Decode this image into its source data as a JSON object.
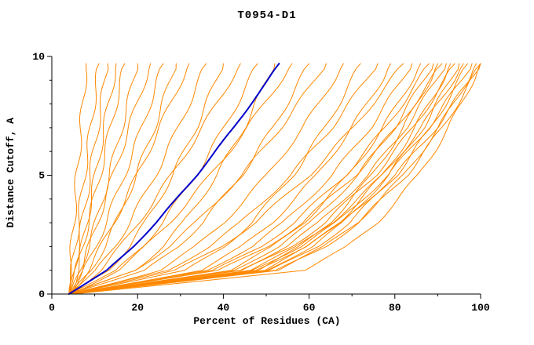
{
  "chart_data": {
    "type": "line",
    "title": "T0954-D1",
    "xlabel": "Percent of Residues (CA)",
    "ylabel": "Distance Cutoff, A",
    "xlim": [
      0,
      100
    ],
    "ylim": [
      0,
      10
    ],
    "x_ticks": [
      0,
      20,
      40,
      60,
      80,
      100
    ],
    "y_ticks": [
      0,
      5,
      10
    ],
    "x_minor_step": 10,
    "y_minor_step": 1,
    "grid": false,
    "legend": "none",
    "colors": {
      "model": "#ff8800",
      "highlight": "#0000cc"
    },
    "y_levels": [
      0,
      1,
      2,
      3,
      5,
      7,
      9,
      9.7
    ],
    "series": [
      {
        "color": "#ff8800",
        "x": [
          4,
          4.3,
          4.7,
          5.1,
          5.9,
          6.8,
          7.7,
          8
        ]
      },
      {
        "color": "#ff8800",
        "x": [
          4,
          4.7,
          5.4,
          6.2,
          7.6,
          9.1,
          10.5,
          11
        ]
      },
      {
        "color": "#ff8800",
        "x": [
          4,
          5.2,
          6.2,
          7.1,
          8.9,
          10.7,
          12.4,
          13
        ]
      },
      {
        "color": "#ff8800",
        "x": [
          5,
          6,
          7.1,
          8.1,
          10.2,
          12.2,
          14.3,
          15
        ]
      },
      {
        "color": "#ff8800",
        "x": [
          4,
          5.7,
          7.1,
          8.5,
          11.2,
          13.7,
          16.2,
          17
        ]
      },
      {
        "color": "#ff8800",
        "x": [
          4,
          6.6,
          8.5,
          10.3,
          13.4,
          16.3,
          19.1,
          20
        ]
      },
      {
        "color": "#ff8800",
        "x": [
          5,
          6.9,
          8.7,
          10.6,
          14.3,
          18,
          21.7,
          23
        ]
      },
      {
        "color": "#ff8800",
        "x": [
          4,
          7.6,
          10.2,
          12.6,
          16.9,
          21,
          24.7,
          26
        ]
      },
      {
        "color": "#ff8800",
        "x": [
          4,
          9.1,
          12.3,
          15,
          19.7,
          23.9,
          27.7,
          29
        ]
      },
      {
        "color": "#ff8800",
        "x": [
          5,
          8.5,
          11.5,
          14.4,
          19.9,
          25.1,
          30.2,
          32
        ]
      },
      {
        "color": "#ff8800",
        "x": [
          4,
          10.5,
          14.6,
          18.1,
          24.1,
          29.5,
          34.4,
          36
        ]
      },
      {
        "color": "#ff8800",
        "x": [
          4,
          13.2,
          18,
          21.8,
          28.2,
          33.6,
          38.4,
          40
        ]
      },
      {
        "color": "#ff8800",
        "x": [
          5,
          11.3,
          16,
          20.2,
          27.9,
          35.1,
          41.7,
          44
        ]
      },
      {
        "color": "#ff8800",
        "x": [
          4,
          15.3,
          21.1,
          25.7,
          33.6,
          40.2,
          46.1,
          48
        ]
      },
      {
        "color": "#ff8800",
        "x": [
          4,
          19.4,
          25.8,
          30.7,
          38.5,
          44.8,
          50.2,
          52
        ]
      },
      {
        "color": "#ff8800",
        "x": [
          5,
          15.4,
          21.9,
          27.4,
          37,
          45.6,
          53.4,
          56
        ]
      },
      {
        "color": "#ff8800",
        "x": [
          4,
          22,
          29.4,
          35.1,
          44.2,
          51.6,
          57.9,
          60
        ]
      },
      {
        "color": "#ff8800",
        "x": [
          4,
          19.4,
          27.3,
          33.6,
          44.3,
          53.3,
          61.4,
          64
        ]
      },
      {
        "color": "#ff8800",
        "x": [
          5,
          25.2,
          33.6,
          40,
          50.2,
          58.6,
          65.7,
          68
        ]
      },
      {
        "color": "#ff8800",
        "x": [
          4,
          31.4,
          40.2,
          46.5,
          56.2,
          63.7,
          70,
          72
        ]
      },
      {
        "color": "#ff8800",
        "x": [
          4,
          27.1,
          36.7,
          44,
          55.7,
          65.2,
          73.3,
          76
        ]
      },
      {
        "color": "#ff8800",
        "x": [
          5,
          34.8,
          44.4,
          51.3,
          61.8,
          70,
          76.9,
          79
        ]
      },
      {
        "color": "#ff8800",
        "x": [
          4,
          29,
          39.4,
          47.4,
          60,
          70.3,
          79.1,
          82
        ]
      },
      {
        "color": "#ff8800",
        "x": [
          4,
          36.2,
          46.6,
          54,
          65.4,
          74.2,
          81.7,
          84
        ]
      },
      {
        "color": "#ff8800",
        "x": [
          5,
          41.6,
          51.6,
          58.7,
          69.2,
          77.3,
          83.9,
          86
        ]
      },
      {
        "color": "#ff8800",
        "x": [
          4,
          37.9,
          48.7,
          56.5,
          68.4,
          77.8,
          85.6,
          88
        ]
      },
      {
        "color": "#ff8800",
        "x": [
          4,
          42.4,
          52.9,
          60.4,
          71.4,
          79.8,
          86.8,
          89
        ]
      },
      {
        "color": "#ff8800",
        "x": [
          5,
          48,
          58,
          64.8,
          74.7,
          82.1,
          88.1,
          90
        ]
      },
      {
        "color": "#ff8800",
        "x": [
          4,
          39.1,
          50.3,
          58.4,
          70.7,
          80.4,
          88.5,
          91
        ]
      },
      {
        "color": "#ff8800",
        "x": [
          4,
          43.8,
          54.6,
          62.3,
          73.8,
          82.5,
          89.7,
          92
        ]
      },
      {
        "color": "#ff8800",
        "x": [
          5,
          49.5,
          59.8,
          66.9,
          77.2,
          84.8,
          91.1,
          93
        ]
      },
      {
        "color": "#ff8800",
        "x": [
          4,
          44.7,
          55.8,
          63.7,
          75.4,
          84.3,
          91.7,
          94
        ]
      },
      {
        "color": "#ff8800",
        "x": [
          4,
          50,
          60.7,
          68,
          78.6,
          86.5,
          93,
          95
        ]
      },
      {
        "color": "#ff8800",
        "x": [
          5,
          46.1,
          57.3,
          65.3,
          77.2,
          86.2,
          93.6,
          96
        ]
      },
      {
        "color": "#ff8800",
        "x": [
          4,
          51.1,
          61.9,
          69.4,
          80.3,
          88.4,
          95,
          97
        ]
      },
      {
        "color": "#ff8800",
        "x": [
          4,
          46.5,
          58.1,
          66.3,
          78.5,
          87.8,
          95.6,
          98
        ]
      },
      {
        "color": "#ff8800",
        "x": [
          5,
          52.6,
          63.6,
          71.1,
          82.1,
          90.3,
          96.9,
          99
        ]
      },
      {
        "color": "#ff8800",
        "x": [
          4,
          52.6,
          63.8,
          71.5,
          82.7,
          91.1,
          97.9,
          100
        ]
      },
      {
        "color": "#ff8800",
        "x": [
          4,
          47.4,
          59.2,
          67.6,
          80.1,
          89.6,
          97.5,
          100
        ]
      },
      {
        "color": "#ff8800",
        "x": [
          5,
          58.9,
          69,
          75.8,
          85.5,
          92.6,
          98.2,
          100
        ]
      },
      {
        "color": "#0000cc",
        "width": 2,
        "x": [
          4,
          12.9,
          19,
          24.3,
          33.8,
          42.4,
          50.4,
          53
        ]
      }
    ]
  }
}
